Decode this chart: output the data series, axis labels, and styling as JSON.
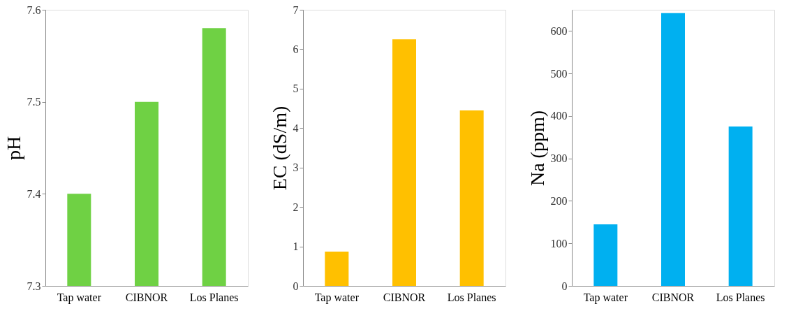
{
  "chart_data": [
    {
      "type": "bar",
      "ylabel": "pH",
      "categories": [
        "Tap water",
        "CIBNOR",
        "Los Planes"
      ],
      "values": [
        7.4,
        7.5,
        7.58
      ],
      "color": "#6fd144",
      "ylim": [
        7.3,
        7.6
      ],
      "yticks": [
        7.3,
        7.4,
        7.5,
        7.6
      ],
      "grid": false
    },
    {
      "type": "bar",
      "ylabel": "EC (dS/m)",
      "categories": [
        "Tap water",
        "CIBNOR",
        "Los Planes"
      ],
      "values": [
        0.87,
        6.25,
        4.45
      ],
      "color": "#ffc000",
      "ylim": [
        0,
        7
      ],
      "yticks": [
        0,
        1,
        2,
        3,
        4,
        5,
        6,
        7
      ],
      "grid": false
    },
    {
      "type": "bar",
      "ylabel": "Na (ppm)",
      "categories": [
        "Tap water",
        "CIBNOR",
        "Los Planes"
      ],
      "values": [
        145,
        642,
        375
      ],
      "color": "#00b0f0",
      "ylim": [
        0,
        650
      ],
      "yticks": [
        0,
        100,
        200,
        300,
        400,
        500,
        600
      ],
      "grid": false
    }
  ]
}
